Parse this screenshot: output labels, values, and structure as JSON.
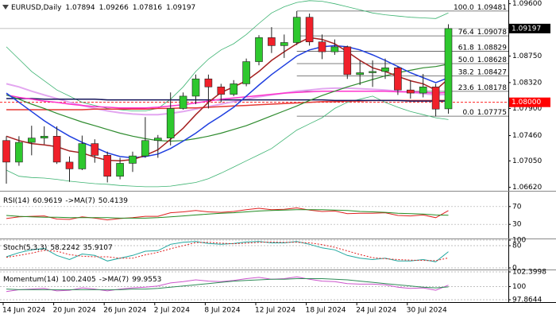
{
  "chart_data": [
    {
      "type": "candlestick",
      "title": "EURUSD,Daily",
      "categories": [
        "14 Jun 2024",
        null,
        null,
        null,
        "20 Jun 2024",
        null,
        null,
        null,
        "26 Jun 2024",
        null,
        null,
        null,
        "2 Jul 2024",
        null,
        null,
        null,
        "8 Jul 2024",
        null,
        null,
        null,
        "12 Jul 2024",
        null,
        null,
        null,
        "18 Jul 2024",
        null,
        null,
        null,
        "24 Jul 2024",
        null,
        null,
        null,
        "30 Jul 2024",
        null,
        null,
        null
      ],
      "open": [
        1.0738,
        1.0703,
        1.0735,
        1.0742,
        1.0745,
        1.0703,
        1.0692,
        1.0733,
        1.0714,
        1.068,
        1.0701,
        1.0713,
        1.0738,
        1.0742,
        1.079,
        1.081,
        1.0838,
        1.0825,
        1.0813,
        1.083,
        1.0866,
        1.0905,
        1.0892,
        1.0897,
        1.0938,
        1.0898,
        1.0882,
        1.089,
        1.0845,
        1.0848,
        1.085,
        1.0856,
        1.082,
        1.0815,
        1.0825,
        1.07894
      ],
      "high": [
        1.0745,
        1.0745,
        1.0762,
        1.0761,
        1.0761,
        1.0712,
        1.0746,
        1.074,
        1.072,
        1.071,
        1.072,
        1.0776,
        1.0747,
        1.0816,
        1.0816,
        1.0845,
        1.0845,
        1.083,
        1.0836,
        1.0871,
        1.0909,
        1.0922,
        1.091,
        1.0948,
        1.0944,
        1.091,
        1.0902,
        1.0892,
        1.0868,
        1.0868,
        1.0871,
        1.0858,
        1.0836,
        1.0846,
        1.083,
        1.09266
      ],
      "low": [
        1.0668,
        1.0697,
        1.0714,
        1.0732,
        1.07,
        1.0671,
        1.069,
        1.0702,
        1.067,
        1.0675,
        1.0687,
        1.071,
        1.071,
        1.073,
        1.0788,
        1.0797,
        1.079,
        1.08,
        1.081,
        1.0826,
        1.086,
        1.088,
        1.0872,
        1.0893,
        1.0892,
        1.087,
        1.0877,
        1.0838,
        1.0828,
        1.0825,
        1.0838,
        1.0812,
        1.0806,
        1.0808,
        1.0777,
        1.07816
      ],
      "close": [
        1.0703,
        1.0735,
        1.0742,
        1.0745,
        1.0703,
        1.0692,
        1.0733,
        1.0714,
        1.068,
        1.0701,
        1.0713,
        1.0738,
        1.0742,
        1.079,
        1.081,
        1.0838,
        1.0825,
        1.0813,
        1.083,
        1.0866,
        1.0905,
        1.0892,
        1.0897,
        1.0938,
        1.0898,
        1.0882,
        1.089,
        1.0845,
        1.0848,
        1.085,
        1.0856,
        1.082,
        1.0815,
        1.0825,
        1.0789,
        1.09197
      ],
      "up_color": "#2ec82e",
      "down_color": "#f0202a",
      "ylim": [
        1.0659,
        1.0966
      ],
      "yticks": [
        {
          "value": 1.096,
          "label": "1.09600"
        },
        {
          "value": 1.0875,
          "label": "1.08750"
        },
        {
          "value": 1.0832,
          "label": "1.08320"
        },
        {
          "value": 1.079,
          "label": "1.07900"
        },
        {
          "value": 1.0746,
          "label": "1.07460"
        },
        {
          "value": 1.0705,
          "label": "1.07050"
        },
        {
          "value": 1.0662,
          "label": "1.06620"
        }
      ],
      "grid": false,
      "lines": [
        {
          "color": "#3cb371",
          "width": 0.8,
          "values": [
            1.089,
            1.087,
            1.085,
            1.0835,
            1.082,
            1.081,
            1.08,
            1.0795,
            1.079,
            1.0788,
            1.0786,
            1.0786,
            1.079,
            1.0805,
            1.0825,
            1.085,
            1.087,
            1.0885,
            1.0895,
            1.091,
            1.0928,
            1.0945,
            1.0955,
            1.0962,
            1.0965,
            1.0964,
            1.096,
            1.0955,
            1.095,
            1.0945,
            1.0942,
            1.094,
            1.0938,
            1.0937,
            1.0936,
            1.0945
          ]
        },
        {
          "color": "#3cb371",
          "width": 0.8,
          "values": [
            1.069,
            1.068,
            1.0678,
            1.0677,
            1.0675,
            1.0672,
            1.067,
            1.0668,
            1.0667,
            1.0665,
            1.0664,
            1.0663,
            1.0663,
            1.0664,
            1.0667,
            1.067,
            1.0676,
            1.0685,
            1.0695,
            1.0705,
            1.0715,
            1.0725,
            1.074,
            1.0755,
            1.0765,
            1.0775,
            1.079,
            1.08,
            1.0805,
            1.081,
            1.08,
            1.0792,
            1.0785,
            1.078,
            1.0775,
            1.0772
          ]
        },
        {
          "color": "#e3a6f0",
          "width": 2,
          "values": [
            1.083,
            1.0825,
            1.0818,
            1.0812,
            1.0806,
            1.08,
            1.0795,
            1.079,
            1.0786,
            1.0783,
            1.0781,
            1.078,
            1.078,
            1.0782,
            1.0785,
            1.0789,
            1.0793,
            1.0797,
            1.0801,
            1.0805,
            1.0809,
            1.0812,
            1.0815,
            1.0818,
            1.082,
            1.0822,
            1.0823,
            1.0823,
            1.0822,
            1.0821,
            1.082,
            1.0818,
            1.0816,
            1.0814,
            1.0812,
            1.0813
          ]
        },
        {
          "color": "#e53935",
          "width": 1.5,
          "values": [
            1.0788,
            1.0788,
            1.0788,
            1.0788,
            1.0788,
            1.0788,
            1.0788,
            1.0789,
            1.0789,
            1.0789,
            1.0789,
            1.0789,
            1.079,
            1.079,
            1.0791,
            1.0791,
            1.0792,
            1.0793,
            1.0794,
            1.0795,
            1.0796,
            1.0797,
            1.0798,
            1.0799,
            1.08,
            1.0801,
            1.0801,
            1.0802,
            1.0802,
            1.0803,
            1.0803,
            1.0803,
            1.0803,
            1.0803,
            1.0803,
            1.0803
          ]
        },
        {
          "color": "#14145a",
          "width": 1.5,
          "values": [
            1.0806,
            1.0806,
            1.0806,
            1.0805,
            1.0805,
            1.0805,
            1.0805,
            1.0805,
            1.0804,
            1.0804,
            1.0804,
            1.0804,
            1.0804,
            1.0804,
            1.0804,
            1.0804,
            1.0804,
            1.0804,
            1.0804,
            1.0804,
            1.0804,
            1.0804,
            1.0804,
            1.0804,
            1.0804,
            1.0804,
            1.0803,
            1.0803,
            1.0803,
            1.0803,
            1.0803,
            1.0803,
            1.0802,
            1.0802,
            1.0802,
            1.0802
          ]
        },
        {
          "color": "#ff33cc",
          "width": 1.5,
          "values": [
            1.0812,
            1.0808,
            1.0805,
            1.0802,
            1.08,
            1.0797,
            1.0795,
            1.0793,
            1.0792,
            1.0791,
            1.0791,
            1.0791,
            1.0792,
            1.0794,
            1.0796,
            1.0799,
            1.0802,
            1.0805,
            1.0807,
            1.0809,
            1.0811,
            1.0813,
            1.0815,
            1.0816,
            1.0817,
            1.0818,
            1.0818,
            1.0818,
            1.0818,
            1.0818,
            1.0818,
            1.0817,
            1.0817,
            1.0816,
            1.0815,
            1.0816
          ]
        },
        {
          "color": "#2e8b2e",
          "width": 1.2,
          "values": [
            1.0812,
            1.0805,
            1.0797,
            1.079,
            1.0782,
            1.0775,
            1.0768,
            1.0762,
            1.0756,
            1.075,
            1.0745,
            1.0741,
            1.0738,
            1.0737,
            1.0738,
            1.0741,
            1.0745,
            1.075,
            1.0756,
            1.0762,
            1.077,
            1.0778,
            1.0786,
            1.0794,
            1.0803,
            1.0811,
            1.0818,
            1.0825,
            1.0831,
            1.0837,
            1.0843,
            1.0848,
            1.0852,
            1.0856,
            1.0858,
            1.0862
          ]
        },
        {
          "color": "#1f3fe0",
          "width": 1.5,
          "values": [
            1.0815,
            1.08,
            1.0785,
            1.077,
            1.0757,
            1.0745,
            1.0735,
            1.0727,
            1.0718,
            1.0712,
            1.071,
            1.0712,
            1.0716,
            1.0725,
            1.0737,
            1.075,
            1.0765,
            1.0778,
            1.0792,
            1.081,
            1.0828,
            1.0845,
            1.086,
            1.0875,
            1.0885,
            1.089,
            1.0892,
            1.089,
            1.0885,
            1.0877,
            1.0868,
            1.0858,
            1.0848,
            1.084,
            1.0832,
            1.084
          ]
        },
        {
          "color": "#a52020",
          "width": 1.5,
          "values": [
            1.0745,
            1.0738,
            1.0733,
            1.0731,
            1.0728,
            1.0721,
            1.0718,
            1.0711,
            1.0706,
            1.0705,
            1.0707,
            1.0714,
            1.0723,
            1.074,
            1.0758,
            1.078,
            1.08,
            1.0816,
            1.0825,
            1.0835,
            1.085,
            1.0868,
            1.0882,
            1.0895,
            1.0905,
            1.0902,
            1.0895,
            1.0882,
            1.0868,
            1.0856,
            1.085,
            1.0842,
            1.0835,
            1.083,
            1.082,
            1.0838
          ]
        }
      ],
      "fib_color": "#555555",
      "fib_levels": [
        {
          "level": "100.0",
          "value": 1.09481
        },
        {
          "level": "76.4",
          "value": 1.09078
        },
        {
          "level": "61.8",
          "value": 1.08829
        },
        {
          "level": "50.0",
          "value": 1.08628
        },
        {
          "level": "38.2",
          "value": 1.08427
        },
        {
          "level": "23.6",
          "value": 1.08178
        },
        {
          "level": "0.0",
          "value": 1.07775
        }
      ],
      "price_line": {
        "value": 1.08,
        "label": "1.08000",
        "color": "#ff0000"
      }
    },
    {
      "type": "line",
      "title": "RSI(14)",
      "ma_label": "->MA(7)",
      "ylim": [
        0,
        100
      ],
      "yticks": [
        70,
        30
      ],
      "grid": true,
      "series": [
        {
          "color": "#e02020",
          "values": [
            43,
            47,
            48,
            49,
            42,
            41,
            47,
            44,
            40,
            43,
            45,
            48,
            48,
            56,
            58,
            61,
            58,
            57,
            59,
            63,
            66,
            63,
            64,
            67,
            62,
            59,
            60,
            54,
            55,
            55,
            56,
            50,
            49,
            51,
            45,
            60.9619
          ]
        },
        {
          "color": "#228b22",
          "values": [
            50,
            48,
            47,
            46,
            46,
            45,
            45,
            45,
            45,
            44,
            44,
            44,
            45,
            47,
            49,
            51,
            53,
            55,
            56,
            58,
            60,
            61,
            62,
            63,
            63,
            63,
            62,
            61,
            59,
            58,
            57,
            55,
            54,
            53,
            51,
            50.4139
          ]
        }
      ]
    },
    {
      "type": "line",
      "title": "Stoch(5,3,3)",
      "ylim": [
        0,
        100
      ],
      "yticks": [
        100,
        80,
        0
      ],
      "grid": true,
      "series": [
        {
          "color": "#20a8a0",
          "values": [
            40,
            55,
            65,
            70,
            45,
            30,
            50,
            45,
            25,
            35,
            45,
            60,
            62,
            85,
            92,
            95,
            88,
            85,
            88,
            93,
            95,
            90,
            90,
            95,
            85,
            72,
            65,
            45,
            35,
            30,
            35,
            25,
            25,
            30,
            22,
            58.2242
          ]
        },
        {
          "color": "#e02020",
          "dash": true,
          "values": [
            38,
            45,
            53,
            63,
            60,
            48,
            42,
            40,
            40,
            35,
            35,
            47,
            56,
            69,
            80,
            91,
            92,
            89,
            87,
            89,
            92,
            93,
            92,
            92,
            90,
            84,
            74,
            61,
            48,
            37,
            33,
            30,
            28,
            27,
            26,
            35.9107
          ]
        }
      ]
    },
    {
      "type": "line",
      "title": "Momentum(14)",
      "ma_label": "->MA(7)",
      "ylim": [
        97.8644,
        102.3998
      ],
      "yticks": [
        102.3998,
        100,
        97.8644
      ],
      "grid": true,
      "series": [
        {
          "color": "#cc55cc",
          "values": [
            99.2,
            99.5,
            99.6,
            99.7,
            99.3,
            99.4,
            99.8,
            99.6,
            99.3,
            99.6,
            99.8,
            99.9,
            100.1,
            100.6,
            100.8,
            101.1,
            100.9,
            100.8,
            101.0,
            101.3,
            101.5,
            101.2,
            101.3,
            101.6,
            101.2,
            100.9,
            100.8,
            100.5,
            100.4,
            100.4,
            100.3,
            99.9,
            99.7,
            99.8,
            99.4,
            100.2405
          ]
        },
        {
          "color": "#2e8b57",
          "values": [
            99.6,
            99.5,
            99.5,
            99.5,
            99.5,
            99.5,
            99.5,
            99.5,
            99.5,
            99.5,
            99.6,
            99.6,
            99.7,
            99.9,
            100.1,
            100.3,
            100.5,
            100.7,
            100.9,
            101.0,
            101.1,
            101.2,
            101.2,
            101.3,
            101.3,
            101.3,
            101.2,
            101.1,
            100.9,
            100.7,
            100.5,
            100.3,
            100.1,
            99.9,
            99.8,
            99.9553
          ]
        }
      ]
    }
  ]
}
